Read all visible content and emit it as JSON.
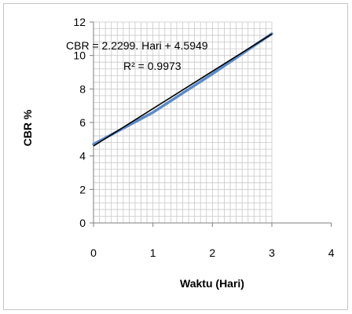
{
  "chart_data": {
    "type": "scatter",
    "title": "",
    "xlabel": "Waktu (Hari)",
    "ylabel": "CBR %",
    "xlim": [
      0,
      4
    ],
    "ylim": [
      0,
      12
    ],
    "xticks": [
      0,
      1,
      2,
      3,
      4
    ],
    "yticks": [
      0,
      2,
      4,
      6,
      8,
      10,
      12
    ],
    "grid": true,
    "legend": "none",
    "series": [
      {
        "kind": "data-line",
        "color": "#5b8bc9",
        "x": [
          0,
          1,
          2,
          3
        ],
        "y": [
          4.7,
          6.6,
          8.9,
          11.3
        ]
      },
      {
        "kind": "linear-trendline",
        "color": "#000000",
        "slope": 2.2299,
        "intercept": 4.5949,
        "x_range": [
          0,
          3
        ]
      }
    ],
    "annotations": {
      "equation": "CBR = 2.2299. Hari + 4.5949",
      "r_squared": "R² = 0.9973"
    }
  }
}
